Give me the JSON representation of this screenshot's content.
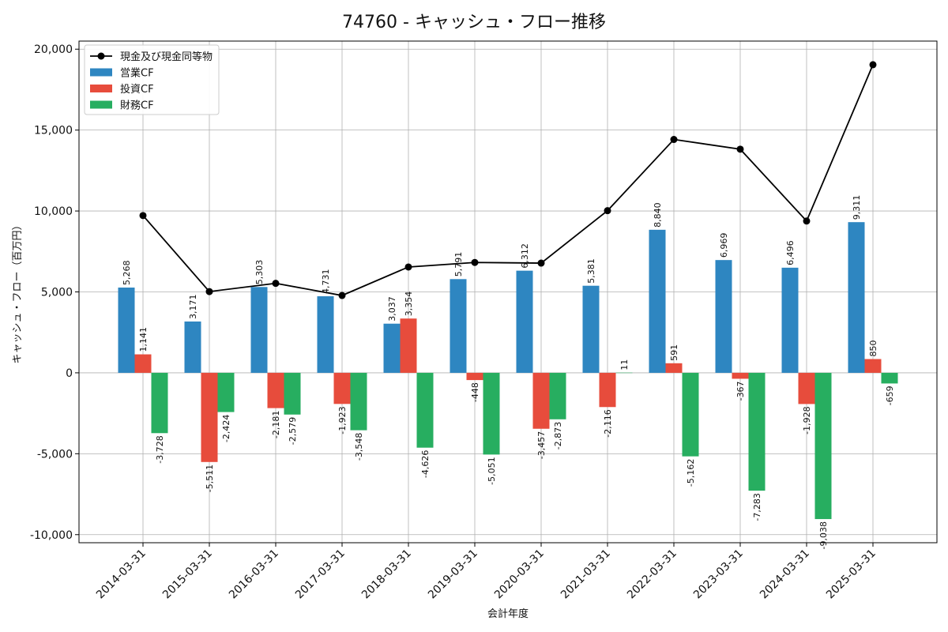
{
  "chart_data": {
    "type": "bar",
    "title": "74760 - キャッシュ・フロー推移",
    "xlabel": "会計年度",
    "ylabel": "キャッシュ・フロー（百万円）",
    "ylim": [
      -10500,
      20500
    ],
    "yticks": [
      -10000,
      -5000,
      0,
      5000,
      10000,
      15000,
      20000
    ],
    "ytick_labels": [
      "-10,000",
      "-5,000",
      "0",
      "5,000",
      "10,000",
      "15,000",
      "20,000"
    ],
    "grid": true,
    "legend_position": "top-left",
    "categories": [
      "2014-03-31",
      "2015-03-31",
      "2016-03-31",
      "2017-03-31",
      "2018-03-31",
      "2019-03-31",
      "2020-03-31",
      "2021-03-31",
      "2022-03-31",
      "2023-03-31",
      "2024-03-31",
      "2025-03-31"
    ],
    "series": [
      {
        "name": "営業CF",
        "kind": "bar",
        "color": "#2e86c1",
        "values": [
          5268,
          3171,
          5303,
          4731,
          3037,
          5791,
          6312,
          5381,
          8840,
          6969,
          6496,
          9311
        ],
        "labels": [
          "5,268",
          "3,171",
          "5,303",
          "4,731",
          "3,037",
          "5,791",
          "6,312",
          "5,381",
          "8,840",
          "6,969",
          "6,496",
          "9,311"
        ]
      },
      {
        "name": "投資CF",
        "kind": "bar",
        "color": "#e74c3c",
        "values": [
          1141,
          -5511,
          -2181,
          -1923,
          3354,
          -448,
          -3457,
          -2116,
          591,
          -367,
          -1928,
          850
        ],
        "labels": [
          "1,141",
          "-5,511",
          "-2,181",
          "-1,923",
          "3,354",
          "-448",
          "-3,457",
          "-2,116",
          "591",
          "-367",
          "-1,928",
          "850"
        ]
      },
      {
        "name": "財務CF",
        "kind": "bar",
        "color": "#27ae60",
        "values": [
          -3728,
          -2424,
          -2579,
          -3548,
          -4626,
          -5051,
          -2873,
          11,
          -5162,
          -7283,
          -9038,
          -659
        ],
        "labels": [
          "-3,728",
          "-2,424",
          "-2,579",
          "-3,548",
          "-4,626",
          "-5,051",
          "-2,873",
          "11",
          "-5,162",
          "-7,283",
          "-9,038",
          "-659"
        ]
      },
      {
        "name": "現金及び現金同等物",
        "kind": "line",
        "color": "#000000",
        "values": [
          9720,
          5020,
          5530,
          4780,
          6540,
          6820,
          6780,
          10020,
          14420,
          13820,
          9380,
          19040
        ]
      }
    ]
  }
}
